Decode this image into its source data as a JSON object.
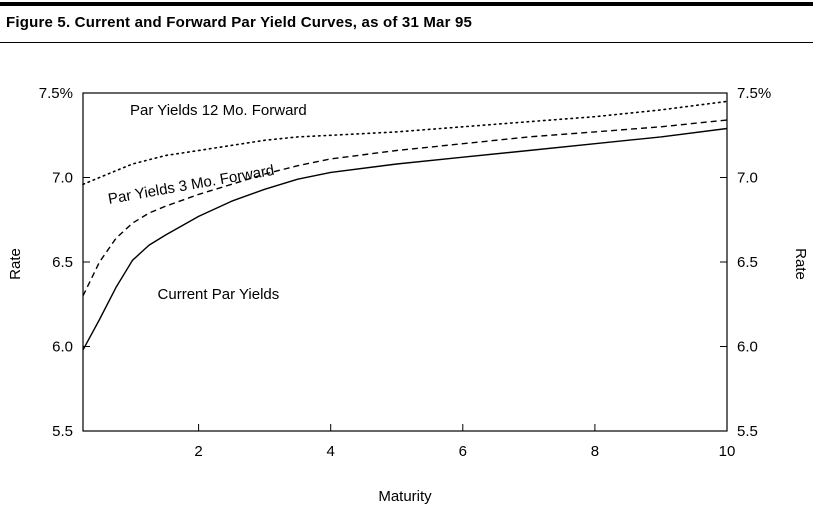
{
  "figure": {
    "title": "Figure 5. Current and Forward Par Yield Curves, as of 31 Mar 95"
  },
  "chart_data": {
    "type": "line",
    "title": "Figure 5. Current and Forward Par Yield Curves, as of 31 Mar 95",
    "xlabel": "Maturity",
    "ylabel_left": "Rate",
    "ylabel_right": "Rate",
    "xlim": [
      0.25,
      10
    ],
    "ylim": [
      5.5,
      7.5
    ],
    "x_ticks": [
      2,
      4,
      6,
      8,
      10
    ],
    "x_tick_labels": [
      "2",
      "4",
      "6",
      "8",
      "10"
    ],
    "y_ticks": [
      5.5,
      6.0,
      6.5,
      7.0,
      7.5
    ],
    "y_tick_labels_left": [
      "5.5",
      "6.0",
      "6.5",
      "7.0",
      "7.5%"
    ],
    "y_tick_labels_right": [
      "5.5",
      "6.0",
      "6.5",
      "7.0",
      "7.5%"
    ],
    "grid": false,
    "series": [
      {
        "name": "Current Par Yields",
        "style": "solid",
        "x": [
          0.25,
          0.5,
          0.75,
          1.0,
          1.25,
          1.5,
          2.0,
          2.5,
          3.0,
          3.5,
          4.0,
          5.0,
          6.0,
          7.0,
          8.0,
          9.0,
          10.0
        ],
        "y": [
          5.98,
          6.16,
          6.35,
          6.51,
          6.6,
          6.66,
          6.77,
          6.86,
          6.93,
          6.99,
          7.03,
          7.08,
          7.12,
          7.16,
          7.2,
          7.24,
          7.29
        ]
      },
      {
        "name": "Par Yields 3 Mo. Forward",
        "style": "dashed",
        "x": [
          0.25,
          0.5,
          0.75,
          1.0,
          1.25,
          1.5,
          2.0,
          2.5,
          3.0,
          3.5,
          4.0,
          5.0,
          6.0,
          7.0,
          8.0,
          9.0,
          10.0
        ],
        "y": [
          6.3,
          6.5,
          6.64,
          6.73,
          6.79,
          6.83,
          6.9,
          6.96,
          7.02,
          7.07,
          7.11,
          7.16,
          7.2,
          7.24,
          7.27,
          7.3,
          7.34
        ]
      },
      {
        "name": "Par Yields 12 Mo. Forward",
        "style": "dotted",
        "x": [
          0.25,
          0.5,
          0.75,
          1.0,
          1.5,
          2.0,
          2.5,
          3.0,
          3.5,
          4.0,
          5.0,
          6.0,
          7.0,
          8.0,
          9.0,
          10.0
        ],
        "y": [
          6.96,
          7.0,
          7.04,
          7.08,
          7.13,
          7.16,
          7.19,
          7.22,
          7.24,
          7.25,
          7.27,
          7.3,
          7.33,
          7.36,
          7.4,
          7.45
        ]
      }
    ],
    "annotations": [
      {
        "text": "Par Yields 12 Mo. Forward",
        "x": 2.3,
        "y": 7.37
      },
      {
        "text": "Par Yields 3 Mo. Forward",
        "x": 1.9,
        "y": 6.93
      },
      {
        "text": "Current Par Yields",
        "x": 2.3,
        "y": 6.28
      }
    ]
  }
}
